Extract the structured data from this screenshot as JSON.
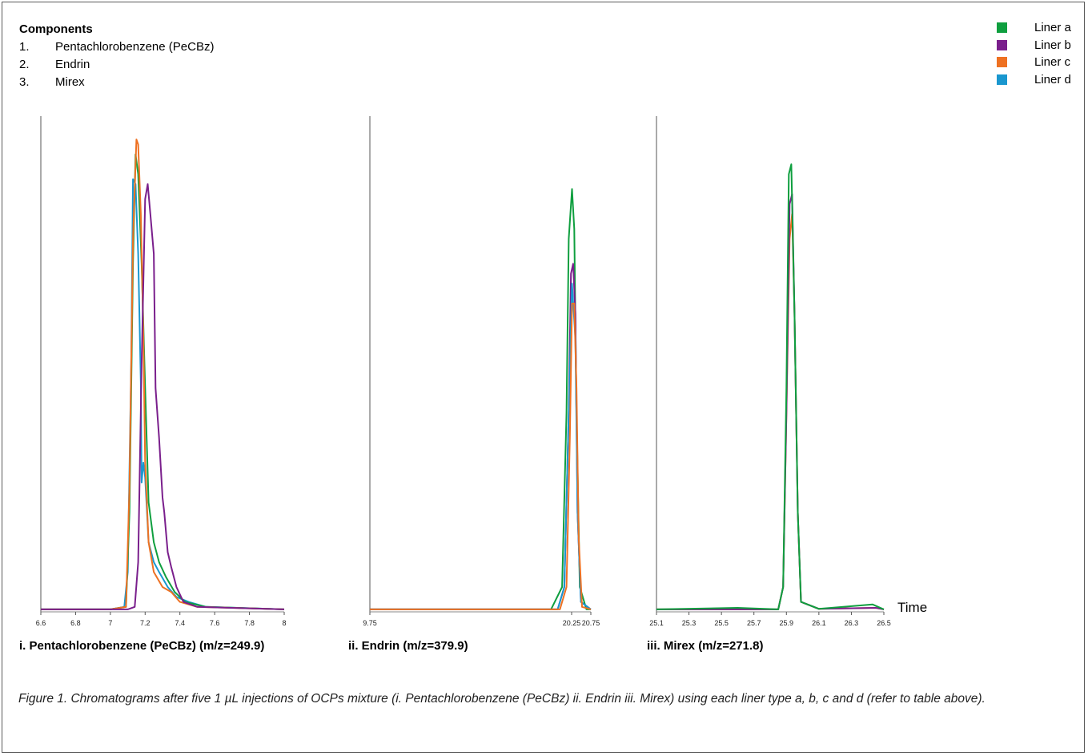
{
  "components": {
    "heading": "Components",
    "items": [
      {
        "num": "1.",
        "name": "Pentachlorobenzene (PeCBz)"
      },
      {
        "num": "2.",
        "name": "Endrin"
      },
      {
        "num": "3.",
        "name": "Mirex"
      }
    ]
  },
  "legend": [
    {
      "label": "Liner a",
      "color": "#0f9f3f"
    },
    {
      "label": "Liner b",
      "color": "#7a1f8c"
    },
    {
      "label": "Liner c",
      "color": "#ee7122"
    },
    {
      "label": "Liner d",
      "color": "#1a97cf"
    }
  ],
  "time_label": "Time",
  "caption": "Figure 1. Chromatograms after five 1 µL injections of OCPs mixture (i. Pentachlorobenzene (PeCBz) ii. Endrin iii. Mirex) using each liner type a, b, c and d (refer to table above).",
  "chart_data": [
    {
      "type": "line",
      "title": "i. Pentachlorobenzene (PeCBz) (m/z=249.9)",
      "xlabel": "Time",
      "xlim": [
        6.6,
        8.0
      ],
      "ylim": [
        0,
        1
      ],
      "x_ticks": [
        "6.6",
        "6.8",
        "7",
        "7.2",
        "7.4",
        "7.6",
        "7.8",
        "8"
      ],
      "x_tick_values": [
        6.6,
        6.8,
        7.0,
        7.2,
        7.4,
        7.6,
        7.8,
        8.0
      ],
      "series": [
        {
          "name": "Liner d",
          "points": [
            [
              6.6,
              0.005
            ],
            [
              7.0,
              0.005
            ],
            [
              7.08,
              0.01
            ],
            [
              7.1,
              0.08
            ],
            [
              7.12,
              0.5
            ],
            [
              7.13,
              0.87
            ],
            [
              7.145,
              0.86
            ],
            [
              7.16,
              0.72
            ],
            [
              7.175,
              0.46
            ],
            [
              7.18,
              0.26
            ],
            [
              7.19,
              0.3
            ],
            [
              7.2,
              0.27
            ],
            [
              7.22,
              0.14
            ],
            [
              7.25,
              0.1
            ],
            [
              7.28,
              0.08
            ],
            [
              7.33,
              0.05
            ],
            [
              7.38,
              0.03
            ],
            [
              7.45,
              0.02
            ],
            [
              7.55,
              0.01
            ],
            [
              8.0,
              0.005
            ]
          ]
        },
        {
          "name": "Liner a",
          "points": [
            [
              6.6,
              0.005
            ],
            [
              7.0,
              0.005
            ],
            [
              7.09,
              0.01
            ],
            [
              7.11,
              0.2
            ],
            [
              7.13,
              0.7
            ],
            [
              7.145,
              0.92
            ],
            [
              7.16,
              0.88
            ],
            [
              7.18,
              0.7
            ],
            [
              7.2,
              0.45
            ],
            [
              7.22,
              0.22
            ],
            [
              7.25,
              0.14
            ],
            [
              7.28,
              0.1
            ],
            [
              7.32,
              0.07
            ],
            [
              7.37,
              0.04
            ],
            [
              7.43,
              0.02
            ],
            [
              7.55,
              0.01
            ],
            [
              8.0,
              0.005
            ]
          ]
        },
        {
          "name": "Liner c",
          "points": [
            [
              6.6,
              0.005
            ],
            [
              7.0,
              0.005
            ],
            [
              7.09,
              0.01
            ],
            [
              7.11,
              0.25
            ],
            [
              7.13,
              0.75
            ],
            [
              7.15,
              0.95
            ],
            [
              7.16,
              0.94
            ],
            [
              7.175,
              0.8
            ],
            [
              7.19,
              0.55
            ],
            [
              7.2,
              0.3
            ],
            [
              7.22,
              0.14
            ],
            [
              7.25,
              0.08
            ],
            [
              7.3,
              0.05
            ],
            [
              7.35,
              0.04
            ],
            [
              7.4,
              0.02
            ],
            [
              7.5,
              0.01
            ],
            [
              8.0,
              0.005
            ]
          ]
        },
        {
          "name": "Liner b",
          "points": [
            [
              6.6,
              0.005
            ],
            [
              7.1,
              0.005
            ],
            [
              7.14,
              0.01
            ],
            [
              7.16,
              0.1
            ],
            [
              7.18,
              0.5
            ],
            [
              7.2,
              0.83
            ],
            [
              7.215,
              0.86
            ],
            [
              7.23,
              0.8
            ],
            [
              7.25,
              0.72
            ],
            [
              7.26,
              0.45
            ],
            [
              7.28,
              0.35
            ],
            [
              7.3,
              0.23
            ],
            [
              7.31,
              0.2
            ],
            [
              7.33,
              0.12
            ],
            [
              7.35,
              0.09
            ],
            [
              7.38,
              0.05
            ],
            [
              7.42,
              0.02
            ],
            [
              7.5,
              0.01
            ],
            [
              8.0,
              0.005
            ]
          ]
        }
      ]
    },
    {
      "type": "line",
      "title": "ii. Endrin (m/z=379.9)",
      "xlabel": "Time",
      "xlim": [
        9.75,
        20.75
      ],
      "ylim": [
        0,
        1
      ],
      "x_ticks": [
        "9.75",
        "20.25",
        "20.75"
      ],
      "x_tick_values": [
        9.75,
        20.25,
        20.75
      ],
      "series": [
        {
          "name": "Liner a",
          "points": [
            [
              0.0,
              0.005
            ],
            [
              0.82,
              0.005
            ],
            [
              0.87,
              0.05
            ],
            [
              0.89,
              0.4
            ],
            [
              0.9,
              0.75
            ],
            [
              0.915,
              0.85
            ],
            [
              0.925,
              0.77
            ],
            [
              0.935,
              0.4
            ],
            [
              0.95,
              0.05
            ],
            [
              0.98,
              0.005
            ],
            [
              1.0,
              0.005
            ]
          ]
        },
        {
          "name": "Liner b",
          "points": [
            [
              0.0,
              0.005
            ],
            [
              0.85,
              0.005
            ],
            [
              0.88,
              0.05
            ],
            [
              0.9,
              0.4
            ],
            [
              0.91,
              0.68
            ],
            [
              0.92,
              0.7
            ],
            [
              0.93,
              0.6
            ],
            [
              0.94,
              0.2
            ],
            [
              0.955,
              0.02
            ],
            [
              1.0,
              0.005
            ]
          ]
        },
        {
          "name": "Liner d",
          "points": [
            [
              0.0,
              0.005
            ],
            [
              0.85,
              0.005
            ],
            [
              0.88,
              0.05
            ],
            [
              0.9,
              0.4
            ],
            [
              0.915,
              0.66
            ],
            [
              0.93,
              0.55
            ],
            [
              0.94,
              0.2
            ],
            [
              0.955,
              0.02
            ],
            [
              1.0,
              0.005
            ]
          ]
        },
        {
          "name": "Liner c",
          "points": [
            [
              0.0,
              0.005
            ],
            [
              0.86,
              0.005
            ],
            [
              0.89,
              0.05
            ],
            [
              0.905,
              0.35
            ],
            [
              0.915,
              0.62
            ],
            [
              0.925,
              0.62
            ],
            [
              0.935,
              0.45
            ],
            [
              0.945,
              0.15
            ],
            [
              0.96,
              0.01
            ],
            [
              1.0,
              0.005
            ]
          ]
        }
      ]
    },
    {
      "type": "line",
      "title": "iii. Mirex (m/z=271.8)",
      "xlabel": "Time",
      "xlim": [
        25.1,
        26.5
      ],
      "ylim": [
        0,
        1
      ],
      "x_ticks": [
        "25.1",
        "25.3",
        "25.5",
        "25.7",
        "25.9",
        "26.1",
        "26.3",
        "26.5"
      ],
      "x_tick_values": [
        25.1,
        25.3,
        25.5,
        25.7,
        25.9,
        26.1,
        26.3,
        26.5
      ],
      "series": [
        {
          "name": "Liner c",
          "points": [
            [
              25.1,
              0.005
            ],
            [
              25.85,
              0.005
            ],
            [
              25.88,
              0.05
            ],
            [
              25.9,
              0.4
            ],
            [
              25.92,
              0.75
            ],
            [
              25.935,
              0.8
            ],
            [
              25.95,
              0.6
            ],
            [
              25.97,
              0.2
            ],
            [
              25.99,
              0.02
            ],
            [
              26.1,
              0.006
            ],
            [
              26.45,
              0.008
            ],
            [
              26.5,
              0.005
            ]
          ]
        },
        {
          "name": "Liner b",
          "points": [
            [
              25.1,
              0.005
            ],
            [
              25.85,
              0.005
            ],
            [
              25.88,
              0.05
            ],
            [
              25.9,
              0.4
            ],
            [
              25.92,
              0.82
            ],
            [
              25.935,
              0.84
            ],
            [
              25.95,
              0.6
            ],
            [
              25.97,
              0.2
            ],
            [
              25.99,
              0.02
            ],
            [
              26.1,
              0.006
            ],
            [
              26.45,
              0.008
            ],
            [
              26.5,
              0.005
            ]
          ]
        },
        {
          "name": "Liner a",
          "points": [
            [
              25.1,
              0.005
            ],
            [
              25.6,
              0.008
            ],
            [
              25.85,
              0.005
            ],
            [
              25.88,
              0.05
            ],
            [
              25.9,
              0.45
            ],
            [
              25.915,
              0.88
            ],
            [
              25.93,
              0.9
            ],
            [
              25.95,
              0.6
            ],
            [
              25.97,
              0.2
            ],
            [
              25.99,
              0.02
            ],
            [
              26.1,
              0.006
            ],
            [
              26.43,
              0.015
            ],
            [
              26.5,
              0.005
            ]
          ]
        }
      ]
    }
  ]
}
